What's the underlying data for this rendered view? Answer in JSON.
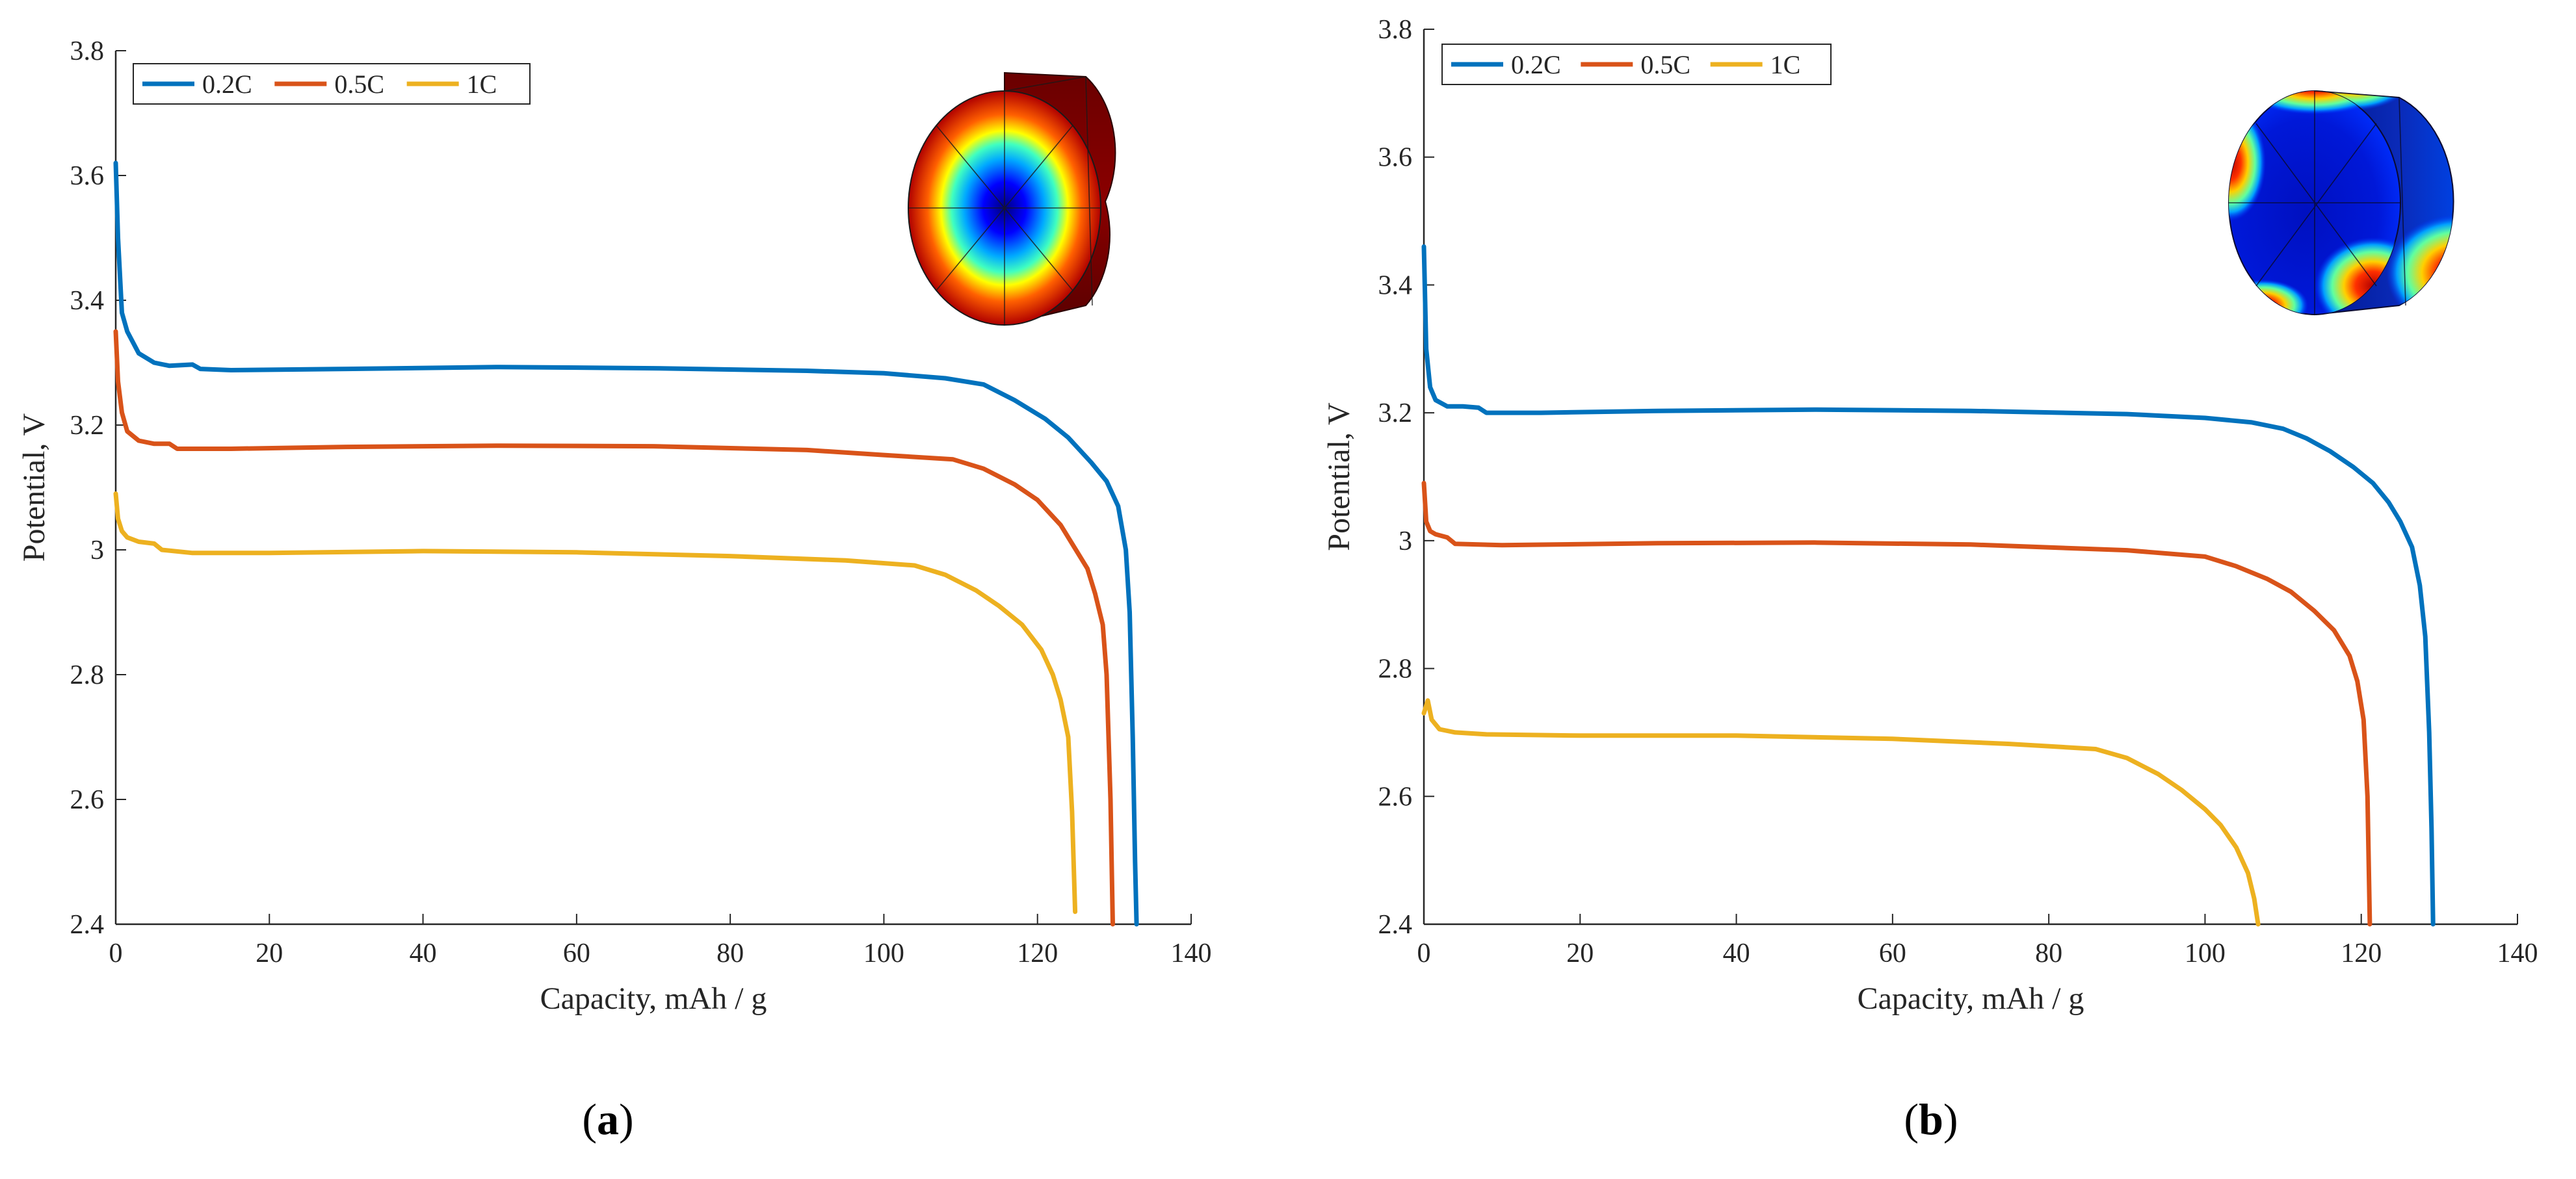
{
  "colors": {
    "series": [
      "#0072BD",
      "#D95319",
      "#EDB120"
    ],
    "axis": "#262626"
  },
  "chart_data": [
    {
      "type": "line",
      "panel_label": {
        "open": "(",
        "letter": "a",
        "close": ")"
      },
      "xlabel": "Capacity, mAh / g",
      "ylabel": "Potential, V",
      "xlim": [
        0,
        140
      ],
      "ylim": [
        2.4,
        3.8
      ],
      "xticks": [
        0,
        20,
        40,
        60,
        80,
        100,
        120,
        140
      ],
      "yticks": [
        2.4,
        2.6,
        2.8,
        3,
        3.2,
        3.4,
        3.6,
        3.8
      ],
      "ytick_labels": [
        "2.4",
        "2.6",
        "2.8",
        "3",
        "3.2",
        "3.4",
        "3.6",
        "3.8"
      ],
      "grid": false,
      "legend": {
        "placement": "top-left",
        "orientation": "horizontal"
      },
      "inset": {
        "type": "colormap-cylinder",
        "colormap": "jet",
        "view": "face-radial"
      },
      "series": [
        {
          "name": "0.2C",
          "points": [
            [
              0,
              3.62
            ],
            [
              0.3,
              3.5
            ],
            [
              0.8,
              3.38
            ],
            [
              1.5,
              3.35
            ],
            [
              3,
              3.315
            ],
            [
              5,
              3.3
            ],
            [
              7,
              3.295
            ],
            [
              10,
              3.297
            ],
            [
              11,
              3.29
            ],
            [
              15,
              3.288
            ],
            [
              30,
              3.29
            ],
            [
              50,
              3.293
            ],
            [
              70,
              3.291
            ],
            [
              90,
              3.287
            ],
            [
              100,
              3.283
            ],
            [
              108,
              3.275
            ],
            [
              113,
              3.265
            ],
            [
              117,
              3.24
            ],
            [
              121,
              3.21
            ],
            [
              124,
              3.18
            ],
            [
              127,
              3.14
            ],
            [
              129,
              3.11
            ],
            [
              130.5,
              3.07
            ],
            [
              131.5,
              3.0
            ],
            [
              132,
              2.9
            ],
            [
              132.4,
              2.7
            ],
            [
              132.7,
              2.5
            ],
            [
              132.9,
              2.4
            ]
          ]
        },
        {
          "name": "0.5C",
          "points": [
            [
              0,
              3.35
            ],
            [
              0.3,
              3.27
            ],
            [
              0.8,
              3.22
            ],
            [
              1.5,
              3.19
            ],
            [
              3,
              3.175
            ],
            [
              5,
              3.17
            ],
            [
              7,
              3.17
            ],
            [
              8,
              3.162
            ],
            [
              15,
              3.162
            ],
            [
              30,
              3.165
            ],
            [
              50,
              3.167
            ],
            [
              70,
              3.166
            ],
            [
              90,
              3.16
            ],
            [
              100,
              3.152
            ],
            [
              109,
              3.145
            ],
            [
              113,
              3.13
            ],
            [
              117,
              3.105
            ],
            [
              120,
              3.08
            ],
            [
              123,
              3.04
            ],
            [
              125,
              3.0
            ],
            [
              126.5,
              2.97
            ],
            [
              127.5,
              2.93
            ],
            [
              128.5,
              2.88
            ],
            [
              129,
              2.8
            ],
            [
              129.5,
              2.6
            ],
            [
              129.8,
              2.4
            ]
          ]
        },
        {
          "name": "1C",
          "points": [
            [
              0,
              3.09
            ],
            [
              0.3,
              3.05
            ],
            [
              0.8,
              3.03
            ],
            [
              1.5,
              3.02
            ],
            [
              3,
              3.013
            ],
            [
              5,
              3.01
            ],
            [
              6,
              3.0
            ],
            [
              10,
              2.995
            ],
            [
              20,
              2.995
            ],
            [
              40,
              2.998
            ],
            [
              60,
              2.996
            ],
            [
              80,
              2.99
            ],
            [
              95,
              2.983
            ],
            [
              104,
              2.975
            ],
            [
              108,
              2.96
            ],
            [
              112,
              2.935
            ],
            [
              115,
              2.91
            ],
            [
              118,
              2.88
            ],
            [
              120.5,
              2.84
            ],
            [
              122,
              2.8
            ],
            [
              123,
              2.76
            ],
            [
              124,
              2.7
            ],
            [
              124.5,
              2.58
            ],
            [
              124.9,
              2.42
            ]
          ]
        }
      ]
    },
    {
      "type": "line",
      "panel_label": {
        "open": "(",
        "letter": "b",
        "close": ")"
      },
      "xlabel": "Capacity, mAh / g",
      "ylabel": "Potential, V",
      "xlim": [
        0,
        140
      ],
      "ylim": [
        2.4,
        3.8
      ],
      "xticks": [
        0,
        20,
        40,
        60,
        80,
        100,
        120,
        140
      ],
      "yticks": [
        2.4,
        2.6,
        2.8,
        3,
        3.2,
        3.4,
        3.6,
        3.8
      ],
      "ytick_labels": [
        "2.4",
        "2.6",
        "2.8",
        "3",
        "3.2",
        "3.4",
        "3.6",
        "3.8"
      ],
      "grid": false,
      "legend": {
        "placement": "top-left",
        "orientation": "horizontal"
      },
      "inset": {
        "type": "colormap-cylinder",
        "colormap": "jet",
        "view": "face-hotspots"
      },
      "series": [
        {
          "name": "0.2C",
          "points": [
            [
              0,
              3.46
            ],
            [
              0.3,
              3.3
            ],
            [
              0.8,
              3.24
            ],
            [
              1.5,
              3.22
            ],
            [
              3,
              3.21
            ],
            [
              5,
              3.21
            ],
            [
              7,
              3.208
            ],
            [
              8,
              3.2
            ],
            [
              15,
              3.2
            ],
            [
              30,
              3.203
            ],
            [
              50,
              3.205
            ],
            [
              70,
              3.203
            ],
            [
              90,
              3.198
            ],
            [
              100,
              3.192
            ],
            [
              106,
              3.185
            ],
            [
              110,
              3.175
            ],
            [
              113,
              3.16
            ],
            [
              116,
              3.14
            ],
            [
              119,
              3.115
            ],
            [
              121.5,
              3.09
            ],
            [
              123.5,
              3.06
            ],
            [
              125,
              3.03
            ],
            [
              126.5,
              2.99
            ],
            [
              127.5,
              2.93
            ],
            [
              128.2,
              2.85
            ],
            [
              128.7,
              2.7
            ],
            [
              129,
              2.55
            ],
            [
              129.2,
              2.4
            ]
          ]
        },
        {
          "name": "0.5C",
          "points": [
            [
              0,
              3.09
            ],
            [
              0.3,
              3.03
            ],
            [
              0.8,
              3.015
            ],
            [
              1.5,
              3.01
            ],
            [
              3,
              3.005
            ],
            [
              4,
              2.995
            ],
            [
              10,
              2.993
            ],
            [
              30,
              2.996
            ],
            [
              50,
              2.997
            ],
            [
              70,
              2.994
            ],
            [
              90,
              2.985
            ],
            [
              100,
              2.975
            ],
            [
              104,
              2.96
            ],
            [
              108,
              2.94
            ],
            [
              111,
              2.92
            ],
            [
              114,
              2.89
            ],
            [
              116.5,
              2.86
            ],
            [
              118.5,
              2.82
            ],
            [
              119.5,
              2.78
            ],
            [
              120.3,
              2.72
            ],
            [
              120.8,
              2.6
            ],
            [
              121.1,
              2.4
            ]
          ]
        },
        {
          "name": "1C",
          "points": [
            [
              0,
              2.73
            ],
            [
              0.5,
              2.75
            ],
            [
              1,
              2.72
            ],
            [
              2,
              2.705
            ],
            [
              4,
              2.7
            ],
            [
              8,
              2.697
            ],
            [
              20,
              2.695
            ],
            [
              40,
              2.695
            ],
            [
              60,
              2.69
            ],
            [
              75,
              2.682
            ],
            [
              86,
              2.674
            ],
            [
              90,
              2.66
            ],
            [
              94,
              2.635
            ],
            [
              97,
              2.61
            ],
            [
              100,
              2.58
            ],
            [
              102,
              2.555
            ],
            [
              104,
              2.52
            ],
            [
              105.5,
              2.48
            ],
            [
              106.3,
              2.44
            ],
            [
              106.8,
              2.4
            ]
          ]
        }
      ]
    }
  ]
}
